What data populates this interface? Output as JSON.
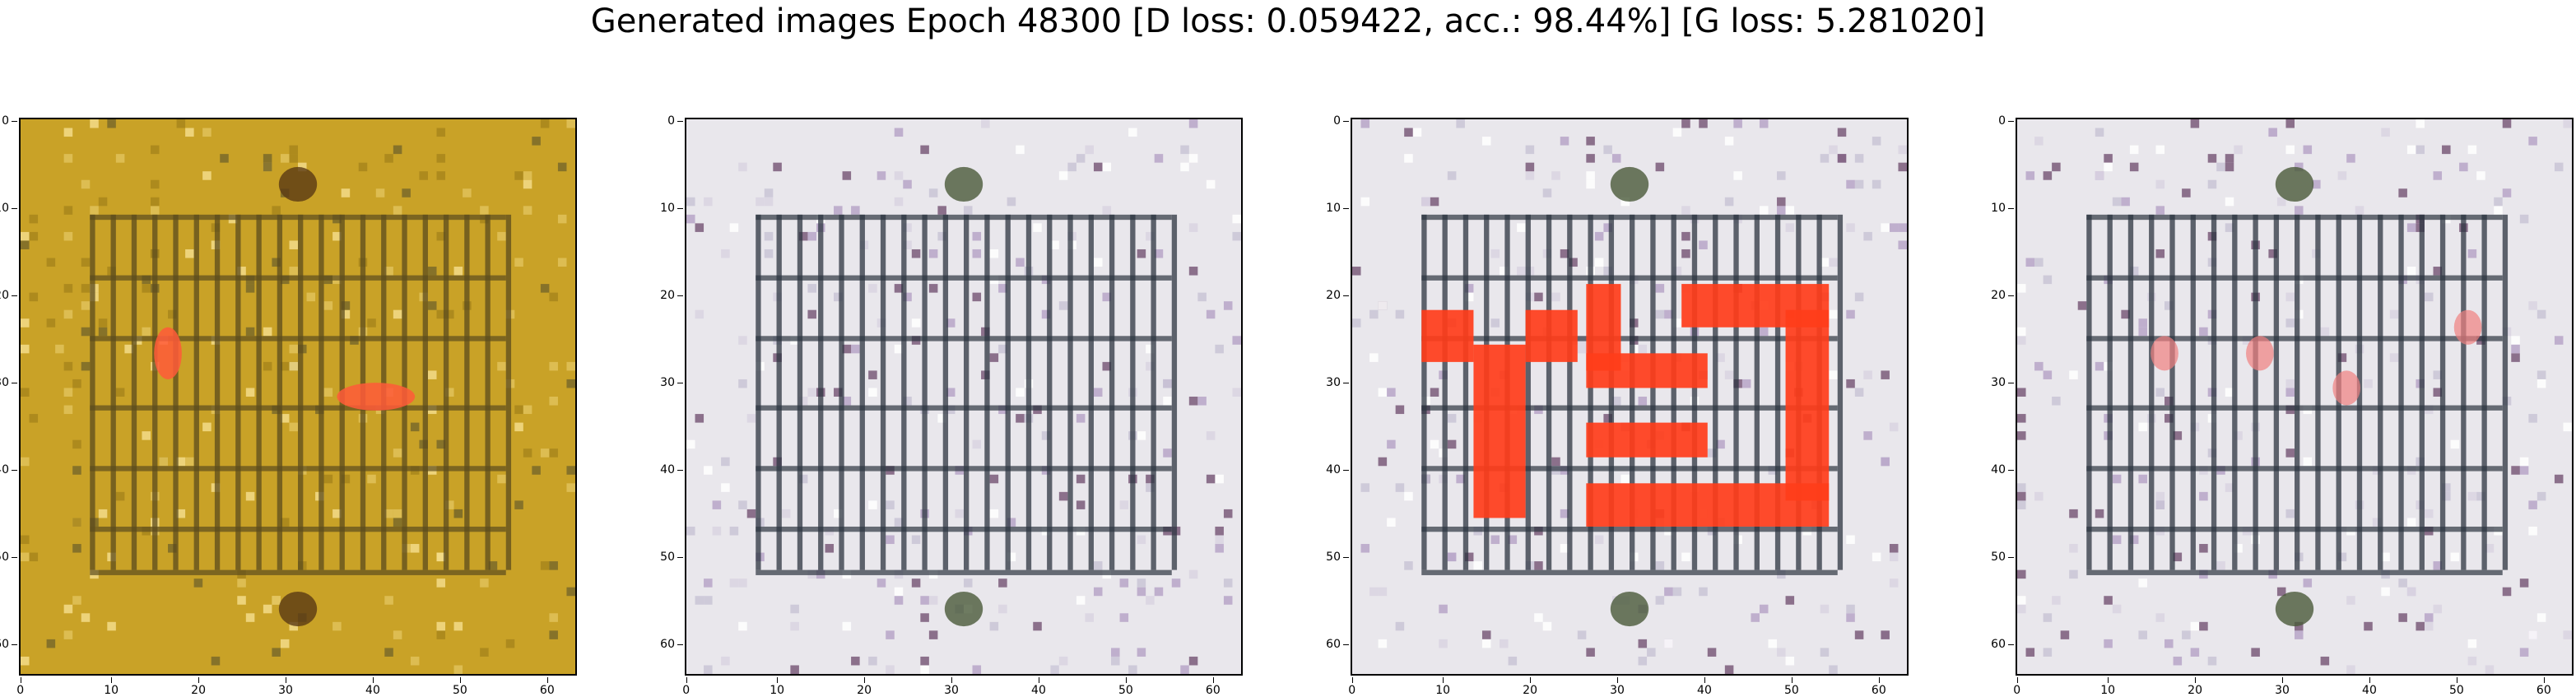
{
  "title": "Generated images Epoch 48300 [D loss: 0.059422, acc.: 98.44%] [G loss: 5.281020]",
  "axis_ticks": {
    "y": [
      "0",
      "10",
      "20",
      "30",
      "40",
      "50",
      "60"
    ],
    "x": [
      "0",
      "10",
      "20",
      "30",
      "40",
      "50",
      "60"
    ]
  },
  "panels": [
    {
      "id": "sample-1",
      "palette": {
        "bg": "#c9a227",
        "grid": "#5b4b1e",
        "accent": "#ff5a3a"
      }
    },
    {
      "id": "sample-2",
      "palette": {
        "bg": "#e9e7ec",
        "grid": "#2c3440",
        "accent": "#d98c8c"
      }
    },
    {
      "id": "sample-3",
      "palette": {
        "bg": "#e9e7ec",
        "grid": "#2c3440",
        "accent": "#ff3d1a"
      }
    },
    {
      "id": "sample-4",
      "palette": {
        "bg": "#e9e7ec",
        "grid": "#2c3440",
        "accent": "#f08080"
      }
    }
  ]
}
